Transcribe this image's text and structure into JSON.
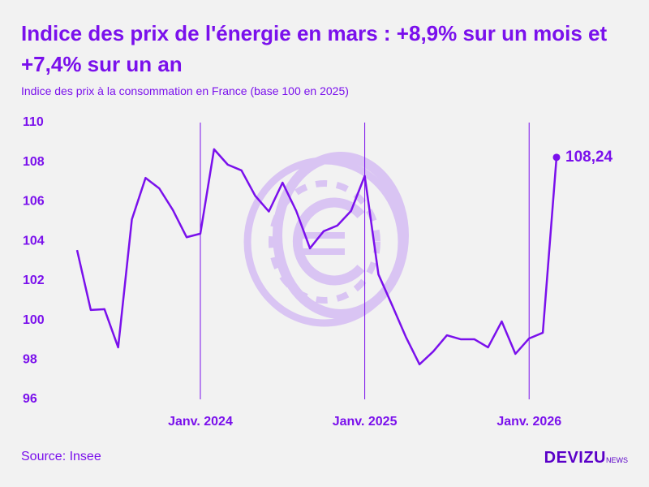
{
  "chart_data": {
    "type": "line",
    "title": "Indice des prix de l'énergie en mars : +8,9% sur un mois et +7,4% sur un an",
    "subtitle": "Indice des prix à la consommation en France (base 100 en 2025)",
    "source": "Source: Insee",
    "brand": "DEVIZU",
    "brand_suffix": "NEWS",
    "categories": [
      null,
      null,
      null,
      null,
      null,
      null,
      null,
      null,
      null,
      "Janv. 2024",
      null,
      null,
      null,
      null,
      null,
      null,
      null,
      null,
      null,
      null,
      null,
      "Janv. 2025",
      null,
      null,
      null,
      null,
      null,
      null,
      null,
      null,
      null,
      null,
      null,
      "Janv. 2026",
      null,
      null
    ],
    "series": [
      {
        "color": "#7a10ec",
        "values": [
          103.55,
          100.52,
          100.56,
          98.63,
          105.1,
          107.2,
          106.67,
          105.57,
          104.2,
          104.38,
          108.65,
          107.87,
          107.58,
          106.3,
          105.5,
          106.96,
          105.53,
          103.64,
          104.5,
          104.79,
          105.53,
          107.3,
          102.32,
          100.76,
          99.16,
          97.77,
          98.42,
          99.24,
          99.04,
          99.04,
          98.63,
          99.94,
          98.3,
          99.08,
          99.37,
          108.24
        ],
        "value_labels": [
          null,
          null,
          null,
          null,
          null,
          null,
          null,
          null,
          null,
          null,
          null,
          null,
          null,
          null,
          null,
          null,
          null,
          null,
          null,
          null,
          null,
          null,
          null,
          null,
          null,
          null,
          null,
          null,
          null,
          null,
          null,
          null,
          null,
          null,
          null,
          "108,24"
        ]
      }
    ],
    "ylim": [
      96,
      110
    ],
    "yticks": [
      96,
      98,
      100,
      102,
      104,
      106,
      108,
      110
    ]
  }
}
